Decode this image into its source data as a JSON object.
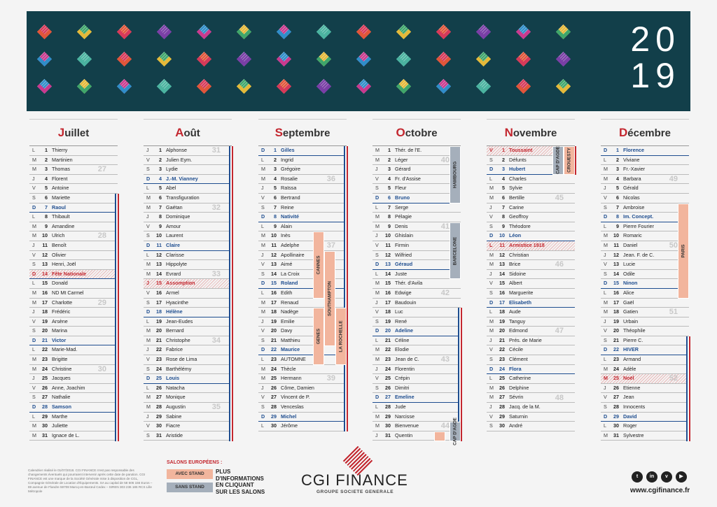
{
  "year": [
    "20",
    "19"
  ],
  "colors": {
    "banner": "#123f4a",
    "accent": "#c3272f",
    "sunday": "#1e4d8f",
    "avec_stand": "#f2b59d",
    "sans_stand": "#a5afbb"
  },
  "months": [
    {
      "initial": "J",
      "rest": "uillet",
      "days": [
        [
          "L",
          "1",
          "Thierry"
        ],
        [
          "M",
          "2",
          "Martinien"
        ],
        [
          "M",
          "3",
          "Thomas"
        ],
        [
          "J",
          "4",
          "Florent"
        ],
        [
          "V",
          "5",
          "Antoine"
        ],
        [
          "S",
          "6",
          "Mariette"
        ],
        [
          "D",
          "7",
          "Raoul"
        ],
        [
          "L",
          "8",
          "Thibault"
        ],
        [
          "M",
          "9",
          "Amandine"
        ],
        [
          "M",
          "10",
          "Ulrich"
        ],
        [
          "J",
          "11",
          "Benoît"
        ],
        [
          "V",
          "12",
          "Olivier"
        ],
        [
          "S",
          "13",
          "Henri, Joël"
        ],
        [
          "D",
          "14",
          "Fête Nationale"
        ],
        [
          "L",
          "15",
          "Donald"
        ],
        [
          "M",
          "16",
          "ND Mt Carmel"
        ],
        [
          "M",
          "17",
          "Charlotte"
        ],
        [
          "J",
          "18",
          "Frédéric"
        ],
        [
          "V",
          "19",
          "Arsène"
        ],
        [
          "S",
          "20",
          "Marina"
        ],
        [
          "D",
          "21",
          "Victor"
        ],
        [
          "L",
          "22",
          "Marie-Mad."
        ],
        [
          "M",
          "23",
          "Brigitte"
        ],
        [
          "M",
          "24",
          "Christine"
        ],
        [
          "J",
          "25",
          "Jacques"
        ],
        [
          "V",
          "26",
          "Anne, Joachim"
        ],
        [
          "S",
          "27",
          "Nathalie"
        ],
        [
          "D",
          "28",
          "Samson"
        ],
        [
          "L",
          "29",
          "Marthe"
        ],
        [
          "M",
          "30",
          "Juliette"
        ],
        [
          "M",
          "31",
          "Ignace de L."
        ]
      ],
      "weeks": [
        [
          "27",
          2
        ],
        [
          "28",
          9
        ],
        [
          "29",
          16
        ],
        [
          "30",
          23
        ]
      ]
    },
    {
      "initial": "A",
      "rest": "oût",
      "days": [
        [
          "J",
          "1",
          "Alphonse"
        ],
        [
          "V",
          "2",
          "Julien Eym."
        ],
        [
          "S",
          "3",
          "Lydie"
        ],
        [
          "D",
          "4",
          "J.-M. Vianney"
        ],
        [
          "L",
          "5",
          "Abel"
        ],
        [
          "M",
          "6",
          "Transfiguration"
        ],
        [
          "M",
          "7",
          "Gaétan"
        ],
        [
          "J",
          "8",
          "Dominique"
        ],
        [
          "V",
          "9",
          "Amour"
        ],
        [
          "S",
          "10",
          "Laurent"
        ],
        [
          "D",
          "11",
          "Claire"
        ],
        [
          "L",
          "12",
          "Clarisse"
        ],
        [
          "M",
          "13",
          "Hippolyte"
        ],
        [
          "M",
          "14",
          "Evrard"
        ],
        [
          "J",
          "15",
          "Assomption"
        ],
        [
          "V",
          "16",
          "Armel"
        ],
        [
          "S",
          "17",
          "Hyacinthe"
        ],
        [
          "D",
          "18",
          "Hélène"
        ],
        [
          "L",
          "19",
          "Jean-Eudes"
        ],
        [
          "M",
          "20",
          "Bernard"
        ],
        [
          "M",
          "21",
          "Christophe"
        ],
        [
          "J",
          "22",
          "Fabrice"
        ],
        [
          "V",
          "23",
          "Rose de Lima"
        ],
        [
          "S",
          "24",
          "Barthélémy"
        ],
        [
          "D",
          "25",
          "Louis"
        ],
        [
          "L",
          "26",
          "Natacha"
        ],
        [
          "M",
          "27",
          "Monique"
        ],
        [
          "M",
          "28",
          "Augustin"
        ],
        [
          "J",
          "29",
          "Sabine"
        ],
        [
          "V",
          "30",
          "Fiacre"
        ],
        [
          "S",
          "31",
          "Aristide"
        ]
      ],
      "weeks": [
        [
          "31",
          0
        ],
        [
          "32",
          6
        ],
        [
          "33",
          13
        ],
        [
          "34",
          20
        ],
        [
          "35",
          27
        ]
      ]
    },
    {
      "initial": "S",
      "rest": "eptembre",
      "days": [
        [
          "D",
          "1",
          "Gilles"
        ],
        [
          "L",
          "2",
          "Ingrid"
        ],
        [
          "M",
          "3",
          "Grégoire"
        ],
        [
          "M",
          "4",
          "Rosalie"
        ],
        [
          "J",
          "5",
          "Raïssa"
        ],
        [
          "V",
          "6",
          "Bertrand"
        ],
        [
          "S",
          "7",
          "Reine"
        ],
        [
          "D",
          "8",
          "Nativité"
        ],
        [
          "L",
          "9",
          "Alain"
        ],
        [
          "M",
          "10",
          "Inès"
        ],
        [
          "M",
          "11",
          "Adelphe"
        ],
        [
          "J",
          "12",
          "Apollinaire"
        ],
        [
          "V",
          "13",
          "Aimé"
        ],
        [
          "S",
          "14",
          "La Croix"
        ],
        [
          "D",
          "15",
          "Roland"
        ],
        [
          "L",
          "16",
          "Edith"
        ],
        [
          "M",
          "17",
          "Renaud"
        ],
        [
          "M",
          "18",
          "Nadège"
        ],
        [
          "J",
          "19",
          "Emilie"
        ],
        [
          "V",
          "20",
          "Davy"
        ],
        [
          "S",
          "21",
          "Matthieu"
        ],
        [
          "D",
          "22",
          "Maurice"
        ],
        [
          "L",
          "23",
          "AUTOMNE"
        ],
        [
          "M",
          "24",
          "Thècle"
        ],
        [
          "M",
          "25",
          "Hermann"
        ],
        [
          "J",
          "26",
          "Côme, Damien"
        ],
        [
          "V",
          "27",
          "Vincent de P."
        ],
        [
          "S",
          "28",
          "Venceslas"
        ],
        [
          "D",
          "29",
          "Michel"
        ],
        [
          "L",
          "30",
          "Jérôme"
        ]
      ],
      "weeks": [
        [
          "36",
          3
        ],
        [
          "37",
          10
        ],
        [
          "38",
          17
        ],
        [
          "39",
          24
        ]
      ]
    },
    {
      "initial": "O",
      "rest": "ctobre",
      "days": [
        [
          "M",
          "1",
          "Thér. de l'E."
        ],
        [
          "M",
          "2",
          "Léger"
        ],
        [
          "J",
          "3",
          "Gérard"
        ],
        [
          "V",
          "4",
          "Fr. d'Assise"
        ],
        [
          "S",
          "5",
          "Fleur"
        ],
        [
          "D",
          "6",
          "Bruno"
        ],
        [
          "L",
          "7",
          "Serge"
        ],
        [
          "M",
          "8",
          "Pélagie"
        ],
        [
          "M",
          "9",
          "Denis"
        ],
        [
          "J",
          "10",
          "Ghislain"
        ],
        [
          "V",
          "11",
          "Firmin"
        ],
        [
          "S",
          "12",
          "Wilfried"
        ],
        [
          "D",
          "13",
          "Géraud"
        ],
        [
          "L",
          "14",
          "Juste"
        ],
        [
          "M",
          "15",
          "Thér. d'Avila"
        ],
        [
          "M",
          "16",
          "Edwige"
        ],
        [
          "J",
          "17",
          "Baudouin"
        ],
        [
          "V",
          "18",
          "Luc"
        ],
        [
          "S",
          "19",
          "René"
        ],
        [
          "D",
          "20",
          "Adeline"
        ],
        [
          "L",
          "21",
          "Céline"
        ],
        [
          "M",
          "22",
          "Elodie"
        ],
        [
          "M",
          "23",
          "Jean de C."
        ],
        [
          "J",
          "24",
          "Florentin"
        ],
        [
          "V",
          "25",
          "Crépin"
        ],
        [
          "S",
          "26",
          "Dimitri"
        ],
        [
          "D",
          "27",
          "Emeline"
        ],
        [
          "L",
          "28",
          "Jude"
        ],
        [
          "M",
          "29",
          "Narcisse"
        ],
        [
          "M",
          "30",
          "Bienvenue"
        ],
        [
          "J",
          "31",
          "Quentin"
        ]
      ],
      "weeks": [
        [
          "40",
          1
        ],
        [
          "41",
          8
        ],
        [
          "42",
          15
        ],
        [
          "43",
          22
        ],
        [
          "44",
          29
        ]
      ]
    },
    {
      "initial": "N",
      "rest": "ovembre",
      "days": [
        [
          "V",
          "1",
          "Toussaint"
        ],
        [
          "S",
          "2",
          "Défunts"
        ],
        [
          "D",
          "3",
          "Hubert"
        ],
        [
          "L",
          "4",
          "Charles"
        ],
        [
          "M",
          "5",
          "Sylvie"
        ],
        [
          "M",
          "6",
          "Bertille"
        ],
        [
          "J",
          "7",
          "Carine"
        ],
        [
          "V",
          "8",
          "Geoffroy"
        ],
        [
          "S",
          "9",
          "Théodore"
        ],
        [
          "D",
          "10",
          "Léon"
        ],
        [
          "L",
          "11",
          "Armistice 1918"
        ],
        [
          "M",
          "12",
          "Christian"
        ],
        [
          "M",
          "13",
          "Brice"
        ],
        [
          "J",
          "14",
          "Sidoine"
        ],
        [
          "V",
          "15",
          "Albert"
        ],
        [
          "S",
          "16",
          "Marguerite"
        ],
        [
          "D",
          "17",
          "Elisabeth"
        ],
        [
          "L",
          "18",
          "Aude"
        ],
        [
          "M",
          "19",
          "Tanguy"
        ],
        [
          "M",
          "20",
          "Edmond"
        ],
        [
          "J",
          "21",
          "Prés. de Marie"
        ],
        [
          "V",
          "22",
          "Cécile"
        ],
        [
          "S",
          "23",
          "Clément"
        ],
        [
          "D",
          "24",
          "Flora"
        ],
        [
          "L",
          "25",
          "Catherine"
        ],
        [
          "M",
          "26",
          "Delphine"
        ],
        [
          "M",
          "27",
          "Sévrin"
        ],
        [
          "J",
          "28",
          "Jacq. de la M."
        ],
        [
          "V",
          "29",
          "Saturnin"
        ],
        [
          "S",
          "30",
          "André"
        ]
      ],
      "weeks": [
        [
          "45",
          5
        ],
        [
          "46",
          12
        ],
        [
          "47",
          19
        ],
        [
          "48",
          26
        ]
      ]
    },
    {
      "initial": "D",
      "rest": "écembre",
      "days": [
        [
          "D",
          "1",
          "Florence"
        ],
        [
          "L",
          "2",
          "Viviane"
        ],
        [
          "M",
          "3",
          "Fr.-Xavier"
        ],
        [
          "M",
          "4",
          "Barbara"
        ],
        [
          "J",
          "5",
          "Gérald"
        ],
        [
          "V",
          "6",
          "Nicolas"
        ],
        [
          "S",
          "7",
          "Ambroise"
        ],
        [
          "D",
          "8",
          "Im. Concept."
        ],
        [
          "L",
          "9",
          "Pierre Fourier"
        ],
        [
          "M",
          "10",
          "Romaric"
        ],
        [
          "M",
          "11",
          "Daniel"
        ],
        [
          "J",
          "12",
          "Jean. F. de C."
        ],
        [
          "V",
          "13",
          "Lucie"
        ],
        [
          "S",
          "14",
          "Odile"
        ],
        [
          "D",
          "15",
          "Ninon"
        ],
        [
          "L",
          "16",
          "Alice"
        ],
        [
          "M",
          "17",
          "Gaël"
        ],
        [
          "M",
          "18",
          "Gatien"
        ],
        [
          "J",
          "19",
          "Urbain"
        ],
        [
          "V",
          "20",
          "Théophile"
        ],
        [
          "S",
          "21",
          "Pierre C."
        ],
        [
          "D",
          "22",
          "HIVER"
        ],
        [
          "L",
          "23",
          "Armand"
        ],
        [
          "M",
          "24",
          "Adèle"
        ],
        [
          "M",
          "25",
          "Noël"
        ],
        [
          "J",
          "26",
          "Etienne"
        ],
        [
          "V",
          "27",
          "Jean"
        ],
        [
          "S",
          "28",
          "Innocents"
        ],
        [
          "D",
          "29",
          "David"
        ],
        [
          "L",
          "30",
          "Roger"
        ],
        [
          "M",
          "31",
          "Sylvestre"
        ]
      ],
      "weeks": [
        [
          "49",
          3
        ],
        [
          "50",
          10
        ],
        [
          "51",
          17
        ],
        [
          "52",
          24
        ]
      ]
    }
  ],
  "holidays": [
    [
      0,
      13
    ],
    [
      1,
      14
    ],
    [
      4,
      0
    ],
    [
      4,
      10
    ],
    [
      5,
      24
    ]
  ],
  "salons": [
    {
      "m": 2,
      "col": 1,
      "s": 11,
      "e": 20,
      "type": "avec",
      "label": "SOUTHAMPTON"
    },
    {
      "m": 2,
      "col": 2,
      "s": 9,
      "e": 15,
      "type": "avec",
      "label": "CANNES"
    },
    {
      "m": 2,
      "col": 0,
      "s": 17,
      "e": 22,
      "type": "avec",
      "label": "LA ROCHELLE"
    },
    {
      "m": 2,
      "col": 2,
      "s": 17,
      "e": 22,
      "type": "avec",
      "label": "GENES"
    },
    {
      "m": 3,
      "col": 0,
      "s": 0,
      "e": 5,
      "type": "sans",
      "label": "HAMBOURG"
    },
    {
      "m": 3,
      "col": 0,
      "s": 8,
      "e": 13,
      "type": "sans",
      "label": "BARCELONE"
    },
    {
      "m": 3,
      "col": 0,
      "s": 29,
      "e": 30,
      "type": "sans",
      "label": "CAP D'AGDE"
    },
    {
      "m": 3,
      "col": -1,
      "s": 30,
      "e": 30,
      "type": "avec",
      "label": ""
    },
    {
      "m": 4,
      "col": 0,
      "s": 0,
      "e": 2,
      "type": "avec",
      "label": "CROUESTY"
    },
    {
      "m": 4,
      "col": 1,
      "s": 0,
      "e": 2,
      "type": "sans",
      "label": "CAP D'AGDE"
    },
    {
      "m": 5,
      "col": 0,
      "s": 6,
      "e": 15,
      "type": "avec",
      "label": "PARIS"
    }
  ],
  "tricolor": [
    {
      "m": 0,
      "s": 5,
      "e": 30
    },
    {
      "m": 1,
      "s": 0,
      "e": 30
    },
    {
      "m": 2,
      "s": 0,
      "e": 29
    },
    {
      "m": 3,
      "s": 17,
      "e": 30
    },
    {
      "m": 4,
      "s": 0,
      "e": 2
    },
    {
      "m": 5,
      "s": 20,
      "e": 30
    }
  ],
  "footer": {
    "disclaimer": "Calendrier réalisé le 01/07/2018. CGI FINANCE n'est pas responsable des changements éventuels qui pourraient intervenir après cette date de parution. CGI FINANCE est une marque de la Société Générale mise à disposition de CGL, Compagnie Générale de Location d'Équipements. SA au capital de 58 606 156 Euros – 69 avenue de Flandre 59708 Marcq-en-Barœul Cedex – SIREN 303 236 186 RCS Lille Métropole",
    "salons_title": "SALONS EUROPÉENS :",
    "avec_stand": "AVEC STAND",
    "sans_stand": "SANS STAND",
    "cta": [
      "PLUS",
      "D'INFORMATIONS",
      "EN CLIQUANT",
      "SUR LES SALONS"
    ],
    "brand": "CGI FINANCE",
    "brand_sub": "GROUPE SOCIETE GENERALE",
    "socials": [
      {
        "icon": "twitter-icon",
        "glyph": "t"
      },
      {
        "icon": "linkedin-icon",
        "glyph": "in"
      },
      {
        "icon": "viadeo-icon",
        "glyph": "v"
      },
      {
        "icon": "youtube-icon",
        "glyph": "▶"
      }
    ],
    "website": "www.cgifinance.fr"
  }
}
